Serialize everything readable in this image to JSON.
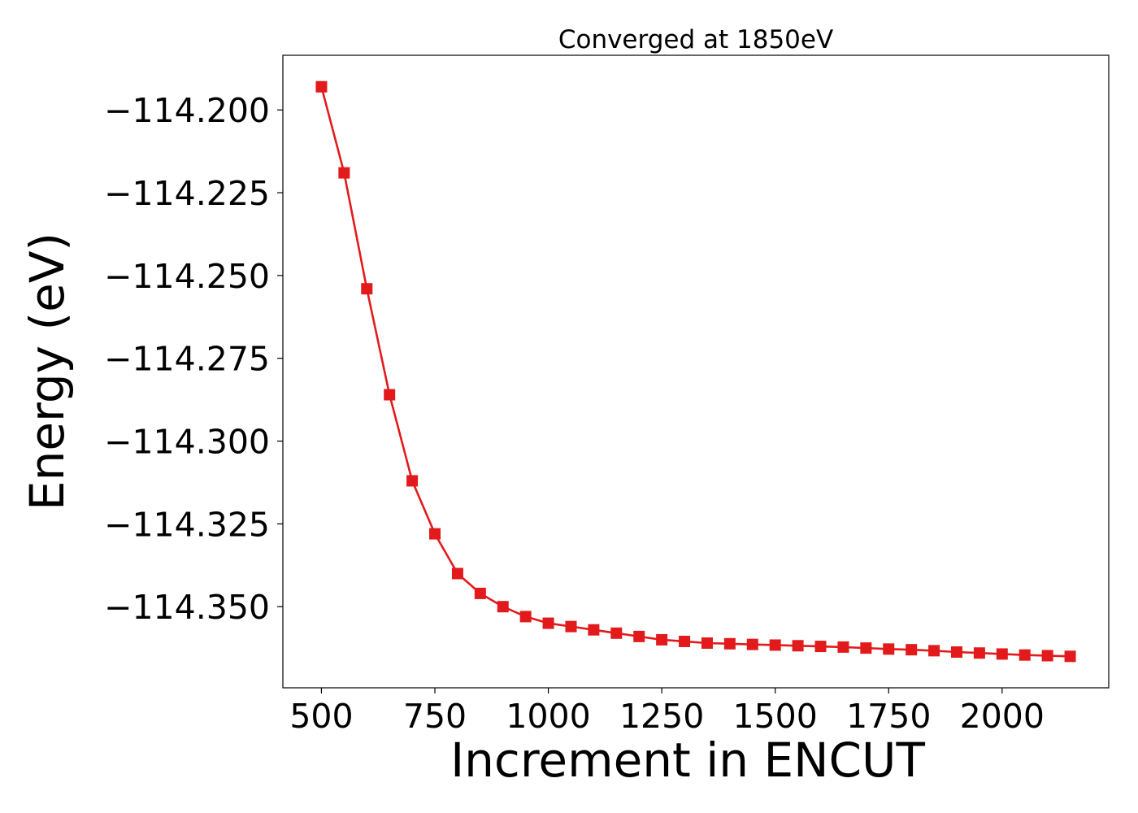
{
  "chart_data": {
    "type": "line",
    "title": "Converged at 1850eV",
    "xlabel": "Increment in ENCUT",
    "ylabel": "Energy (eV)",
    "xlim": [
      415,
      2235
    ],
    "ylim": [
      -114.3745,
      -114.1835
    ],
    "xticks": [
      500,
      750,
      1000,
      1250,
      1500,
      1750,
      2000
    ],
    "xtick_labels": [
      "500",
      "750",
      "1000",
      "1250",
      "1500",
      "1750",
      "2000"
    ],
    "yticks": [
      -114.2,
      -114.225,
      -114.25,
      -114.275,
      -114.3,
      -114.325,
      -114.35
    ],
    "ytick_labels": [
      "−114.200",
      "−114.225",
      "−114.250",
      "−114.275",
      "−114.300",
      "−114.325",
      "−114.350"
    ],
    "grid": false,
    "legend": null,
    "series": [
      {
        "color": "#e31a1c",
        "marker": "square",
        "x": [
          500,
          550,
          600,
          650,
          700,
          750,
          800,
          850,
          900,
          950,
          1000,
          1050,
          1100,
          1150,
          1200,
          1250,
          1300,
          1350,
          1400,
          1450,
          1500,
          1550,
          1600,
          1650,
          1700,
          1750,
          1800,
          1850,
          1900,
          1950,
          2000,
          2050,
          2100,
          2150
        ],
        "y": [
          -114.193,
          -114.219,
          -114.254,
          -114.286,
          -114.312,
          -114.328,
          -114.34,
          -114.346,
          -114.35,
          -114.353,
          -114.355,
          -114.356,
          -114.357,
          -114.358,
          -114.359,
          -114.36,
          -114.3605,
          -114.361,
          -114.3612,
          -114.3614,
          -114.3616,
          -114.3618,
          -114.362,
          -114.3622,
          -114.3625,
          -114.3628,
          -114.363,
          -114.3633,
          -114.3637,
          -114.364,
          -114.3643,
          -114.3646,
          -114.3648,
          -114.365
        ]
      }
    ]
  }
}
